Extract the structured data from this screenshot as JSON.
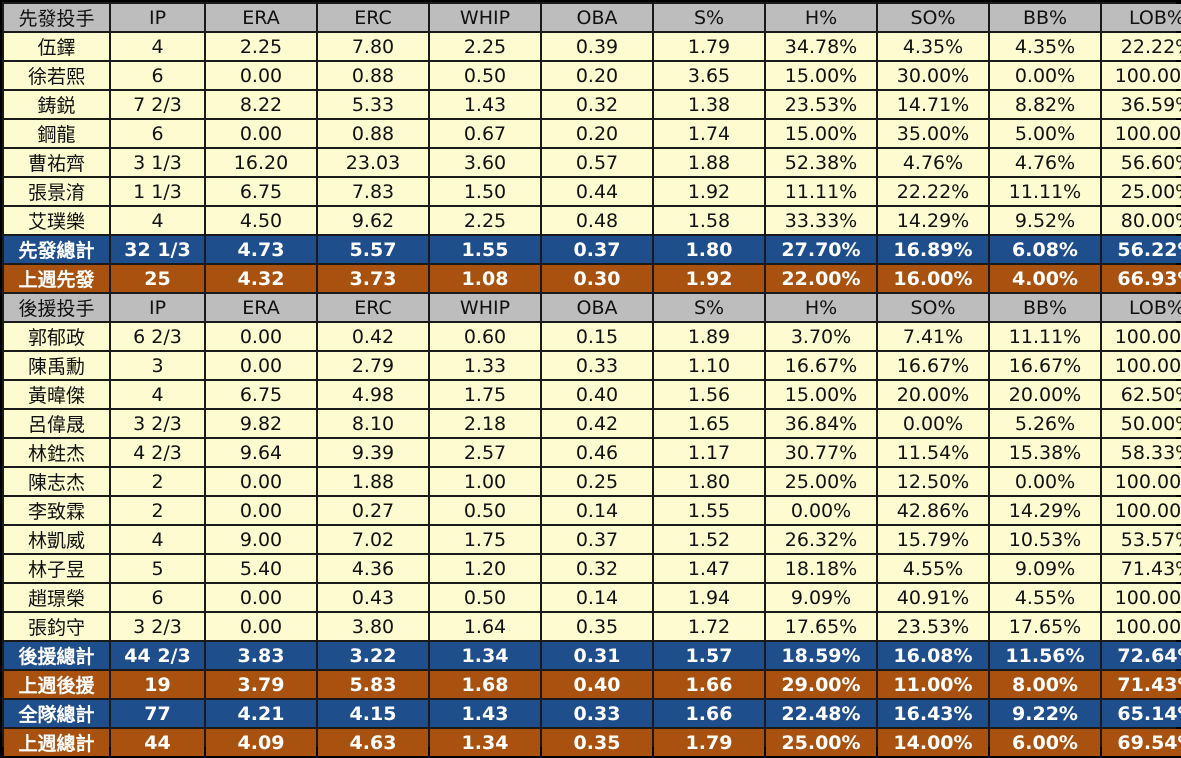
{
  "starters_section": {
    "header": [
      "先發投手",
      "IP",
      "ERA",
      "ERC",
      "WHIP",
      "OBA",
      "S%",
      "H%",
      "SO%",
      "BB%",
      "LOB%"
    ],
    "rows": [
      [
        "伍鐸",
        "4",
        "2.25",
        "7.80",
        "2.25",
        "0.39",
        "1.79",
        "34.78%",
        "4.35%",
        "4.35%",
        "22.22%"
      ],
      [
        "徐若熙",
        "6",
        "0.00",
        "0.88",
        "0.50",
        "0.20",
        "3.65",
        "15.00%",
        "30.00%",
        "0.00%",
        "100.00%"
      ],
      [
        "鋳鋭",
        "7 2/3",
        "8.22",
        "5.33",
        "1.43",
        "0.32",
        "1.38",
        "23.53%",
        "14.71%",
        "8.82%",
        "36.59%"
      ],
      [
        "鋼龍",
        "6",
        "0.00",
        "0.88",
        "0.67",
        "0.20",
        "1.74",
        "15.00%",
        "35.00%",
        "5.00%",
        "100.00%"
      ],
      [
        "曹祐齊",
        "3 1/3",
        "16.20",
        "23.03",
        "3.60",
        "0.57",
        "1.88",
        "52.38%",
        "4.76%",
        "4.76%",
        "56.60%"
      ],
      [
        "張景淯",
        "1 1/3",
        "6.75",
        "7.83",
        "1.50",
        "0.44",
        "1.92",
        "11.11%",
        "22.22%",
        "11.11%",
        "25.00%"
      ],
      [
        "艾璞樂",
        "4",
        "4.50",
        "9.62",
        "2.25",
        "0.48",
        "1.58",
        "33.33%",
        "14.29%",
        "9.52%",
        "80.00%"
      ]
    ],
    "total": [
      "先發總計",
      "32 1/3",
      "4.73",
      "5.57",
      "1.55",
      "0.37",
      "1.80",
      "27.70%",
      "16.89%",
      "6.08%",
      "56.22%"
    ],
    "last_week": [
      "上週先發",
      "25",
      "4.32",
      "3.73",
      "1.08",
      "0.30",
      "1.92",
      "22.00%",
      "16.00%",
      "4.00%",
      "66.93%"
    ]
  },
  "relievers_section": {
    "header": [
      "後援投手",
      "IP",
      "ERA",
      "ERC",
      "WHIP",
      "OBA",
      "S%",
      "H%",
      "SO%",
      "BB%",
      "LOB%"
    ],
    "rows": [
      [
        "郭郁政",
        "6 2/3",
        "0.00",
        "0.42",
        "0.60",
        "0.15",
        "1.89",
        "3.70%",
        "7.41%",
        "11.11%",
        "100.00%"
      ],
      [
        "陳禹勳",
        "3",
        "0.00",
        "2.79",
        "1.33",
        "0.33",
        "1.10",
        "16.67%",
        "16.67%",
        "16.67%",
        "100.00%"
      ],
      [
        "黃暐傑",
        "4",
        "6.75",
        "4.98",
        "1.75",
        "0.40",
        "1.56",
        "15.00%",
        "20.00%",
        "20.00%",
        "62.50%"
      ],
      [
        "呂偉晟",
        "3 2/3",
        "9.82",
        "8.10",
        "2.18",
        "0.42",
        "1.65",
        "36.84%",
        "0.00%",
        "5.26%",
        "50.00%"
      ],
      [
        "林鉎杰",
        "4 2/3",
        "9.64",
        "9.39",
        "2.57",
        "0.46",
        "1.17",
        "30.77%",
        "11.54%",
        "15.38%",
        "58.33%"
      ],
      [
        "陳志杰",
        "2",
        "0.00",
        "1.88",
        "1.00",
        "0.25",
        "1.80",
        "25.00%",
        "12.50%",
        "0.00%",
        "100.00%"
      ],
      [
        "李致霖",
        "2",
        "0.00",
        "0.27",
        "0.50",
        "0.14",
        "1.55",
        "0.00%",
        "42.86%",
        "14.29%",
        "100.00%"
      ],
      [
        "林凱威",
        "4",
        "9.00",
        "7.02",
        "1.75",
        "0.37",
        "1.52",
        "26.32%",
        "15.79%",
        "10.53%",
        "53.57%"
      ],
      [
        "林子昱",
        "5",
        "5.40",
        "4.36",
        "1.20",
        "0.32",
        "1.47",
        "18.18%",
        "4.55%",
        "9.09%",
        "71.43%"
      ],
      [
        "趙璟榮",
        "6",
        "0.00",
        "0.43",
        "0.50",
        "0.14",
        "1.94",
        "9.09%",
        "40.91%",
        "4.55%",
        "100.00%"
      ],
      [
        "張鈞守",
        "3 2/3",
        "0.00",
        "3.80",
        "1.64",
        "0.35",
        "1.72",
        "17.65%",
        "23.53%",
        "17.65%",
        "100.00%"
      ]
    ],
    "total": [
      "後援總計",
      "44 2/3",
      "3.83",
      "3.22",
      "1.34",
      "0.31",
      "1.57",
      "18.59%",
      "16.08%",
      "11.56%",
      "72.64%"
    ],
    "last_week": [
      "上週後援",
      "19",
      "3.79",
      "5.83",
      "1.68",
      "0.40",
      "1.66",
      "29.00%",
      "11.00%",
      "8.00%",
      "71.43%"
    ]
  },
  "team_totals": {
    "total": [
      "全隊總計",
      "77",
      "4.21",
      "4.15",
      "1.43",
      "0.33",
      "1.66",
      "22.48%",
      "16.43%",
      "9.22%",
      "65.14%"
    ],
    "last_week": [
      "上週總計",
      "44",
      "4.09",
      "4.63",
      "1.34",
      "0.35",
      "1.79",
      "25.00%",
      "14.00%",
      "6.00%",
      "69.54%"
    ]
  },
  "colors": {
    "header_bg": "#bdbdbd",
    "row_bg": "#fdfbd0",
    "total_bg": "#1f4e8c",
    "last_week_bg": "#a9520f",
    "grid": "#1a1a1a"
  }
}
